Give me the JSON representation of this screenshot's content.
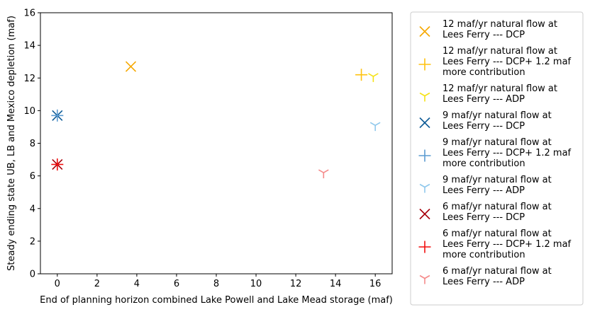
{
  "chart_data": {
    "type": "scatter",
    "title": "",
    "xlabel": "End of planning horizon combined Lake Powell and Lake Mead storage (maf)",
    "ylabel": "Steady ending state UB, LB and Mexico depletion (maf)",
    "xlim": [
      -0.85,
      16.85
    ],
    "ylim": [
      0,
      16
    ],
    "xticks": [
      0,
      2,
      4,
      6,
      8,
      10,
      12,
      14,
      16
    ],
    "yticks": [
      0,
      2,
      4,
      6,
      8,
      10,
      12,
      14,
      16
    ],
    "grid": false,
    "legend_position": "outside-right",
    "series": [
      {
        "name_lines": [
          "12 maf/yr natural flow at",
          "Lees Ferry --- DCP"
        ],
        "marker": "x",
        "color": "#f5a800",
        "points": [
          [
            3.7,
            12.7
          ]
        ]
      },
      {
        "name_lines": [
          "12 maf/yr natural flow at",
          "Lees Ferry --- DCP+ 1.2 maf",
          "more contribution"
        ],
        "marker": "plus",
        "color": "#ffc20e",
        "points": [
          [
            15.3,
            12.2
          ]
        ]
      },
      {
        "name_lines": [
          "12 maf/yr natural flow at",
          "Lees Ferry --- ADP"
        ],
        "marker": "tri",
        "color": "#f5e216",
        "points": [
          [
            15.9,
            12.1
          ]
        ]
      },
      {
        "name_lines": [
          "9 maf/yr natural flow at",
          "Lees Ferry --- DCP"
        ],
        "marker": "x",
        "color": "#0f5c97",
        "points": [
          [
            0,
            9.7
          ]
        ]
      },
      {
        "name_lines": [
          "9 maf/yr natural flow at",
          "Lees Ferry --- DCP+ 1.2 maf",
          "more contribution"
        ],
        "marker": "plus",
        "color": "#5b9bd1",
        "points": [
          [
            0,
            9.7
          ]
        ]
      },
      {
        "name_lines": [
          "9 maf/yr natural flow at",
          "Lees Ferry --- ADP"
        ],
        "marker": "tri",
        "color": "#8fc8ec",
        "points": [
          [
            16.0,
            9.1
          ]
        ]
      },
      {
        "name_lines": [
          "6 maf/yr natural flow at",
          "Lees Ferry --- DCP"
        ],
        "marker": "x",
        "color": "#a8000a",
        "points": [
          [
            0,
            6.7
          ]
        ]
      },
      {
        "name_lines": [
          "6 maf/yr natural flow at",
          "Lees Ferry --- DCP+ 1.2 maf",
          "more contribution"
        ],
        "marker": "plus",
        "color": "#f20d0d",
        "points": [
          [
            0,
            6.7
          ]
        ]
      },
      {
        "name_lines": [
          "6 maf/yr natural flow at",
          "Lees Ferry --- ADP"
        ],
        "marker": "tri",
        "color": "#f58a8a",
        "points": [
          [
            13.4,
            6.2
          ]
        ]
      }
    ]
  }
}
